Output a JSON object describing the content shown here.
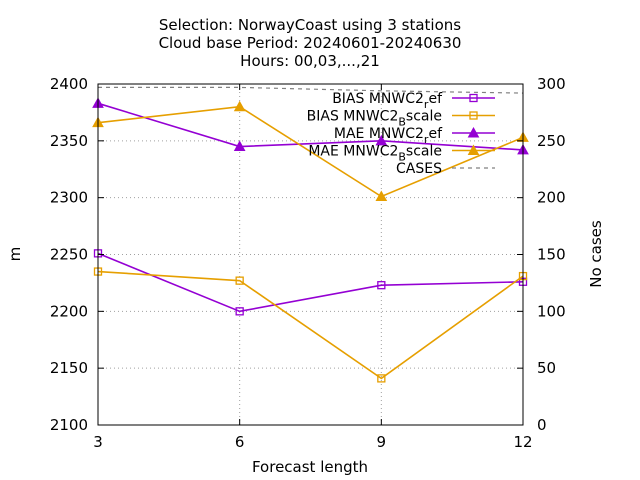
{
  "chart_data": {
    "type": "line",
    "title_lines": [
      "Selection: NorwayCoast using     3 stations",
      "Cloud base   Period: 20240601-20240630",
      "Hours: 00,03,...,21"
    ],
    "xlabel": "Forecast length",
    "ylabel": "m",
    "y2label": "No cases",
    "x": [
      3,
      6,
      9,
      12
    ],
    "xlim": [
      3,
      12
    ],
    "ylim": [
      2100,
      2400
    ],
    "y2lim": [
      0,
      300
    ],
    "xticks": [
      "3",
      "6",
      "9",
      "12"
    ],
    "yticks": [
      "2100",
      "2150",
      "2200",
      "2250",
      "2300",
      "2350",
      "2400"
    ],
    "y2ticks": [
      "0",
      "50",
      "100",
      "150",
      "200",
      "250",
      "300"
    ],
    "grid": true,
    "legend_position": "top-right",
    "series": [
      {
        "name": "BIAS MNWC2_ref",
        "label_parts": [
          "BIAS MNWC2",
          "r",
          "ef"
        ],
        "values": [
          2251,
          2200,
          2223,
          2226
        ],
        "color": "#9400d3",
        "marker": "square",
        "axis": "y"
      },
      {
        "name": "BIAS MNWC2_Bscale",
        "label_parts": [
          "BIAS MNWC2",
          "B",
          "scale"
        ],
        "values": [
          2235,
          2227,
          2141,
          2231
        ],
        "color": "#e69f00",
        "marker": "square",
        "axis": "y"
      },
      {
        "name": "MAE MNWC2_ref",
        "label_parts": [
          "MAE MNWC2",
          "r",
          "ef"
        ],
        "values": [
          2383,
          2345,
          2350,
          2342
        ],
        "color": "#9400d3",
        "marker": "triangle",
        "axis": "y"
      },
      {
        "name": "MAE MNWC2_Bscale",
        "label_parts": [
          "MAE MNWC2",
          "B",
          "scale"
        ],
        "values": [
          2366,
          2380,
          2301,
          2353
        ],
        "color": "#e69f00",
        "marker": "triangle",
        "axis": "y"
      },
      {
        "name": "CASES",
        "label_parts": [
          "CASES",
          "",
          ""
        ],
        "values": [
          297,
          297,
          294,
          292
        ],
        "color": "#808080",
        "marker": "none",
        "dashed": true,
        "axis": "y2"
      }
    ]
  }
}
